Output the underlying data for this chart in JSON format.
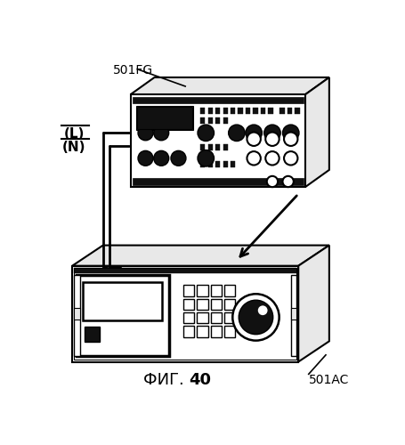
{
  "title": "ФИГ. 40",
  "label_501FG": "501FG",
  "label_501AC": "501AC",
  "label_L": "(L)",
  "label_N": "(N)",
  "bg_color": "#ffffff",
  "line_color": "#000000",
  "dark_fill": "#111111",
  "light_gray": "#e8e8e8"
}
